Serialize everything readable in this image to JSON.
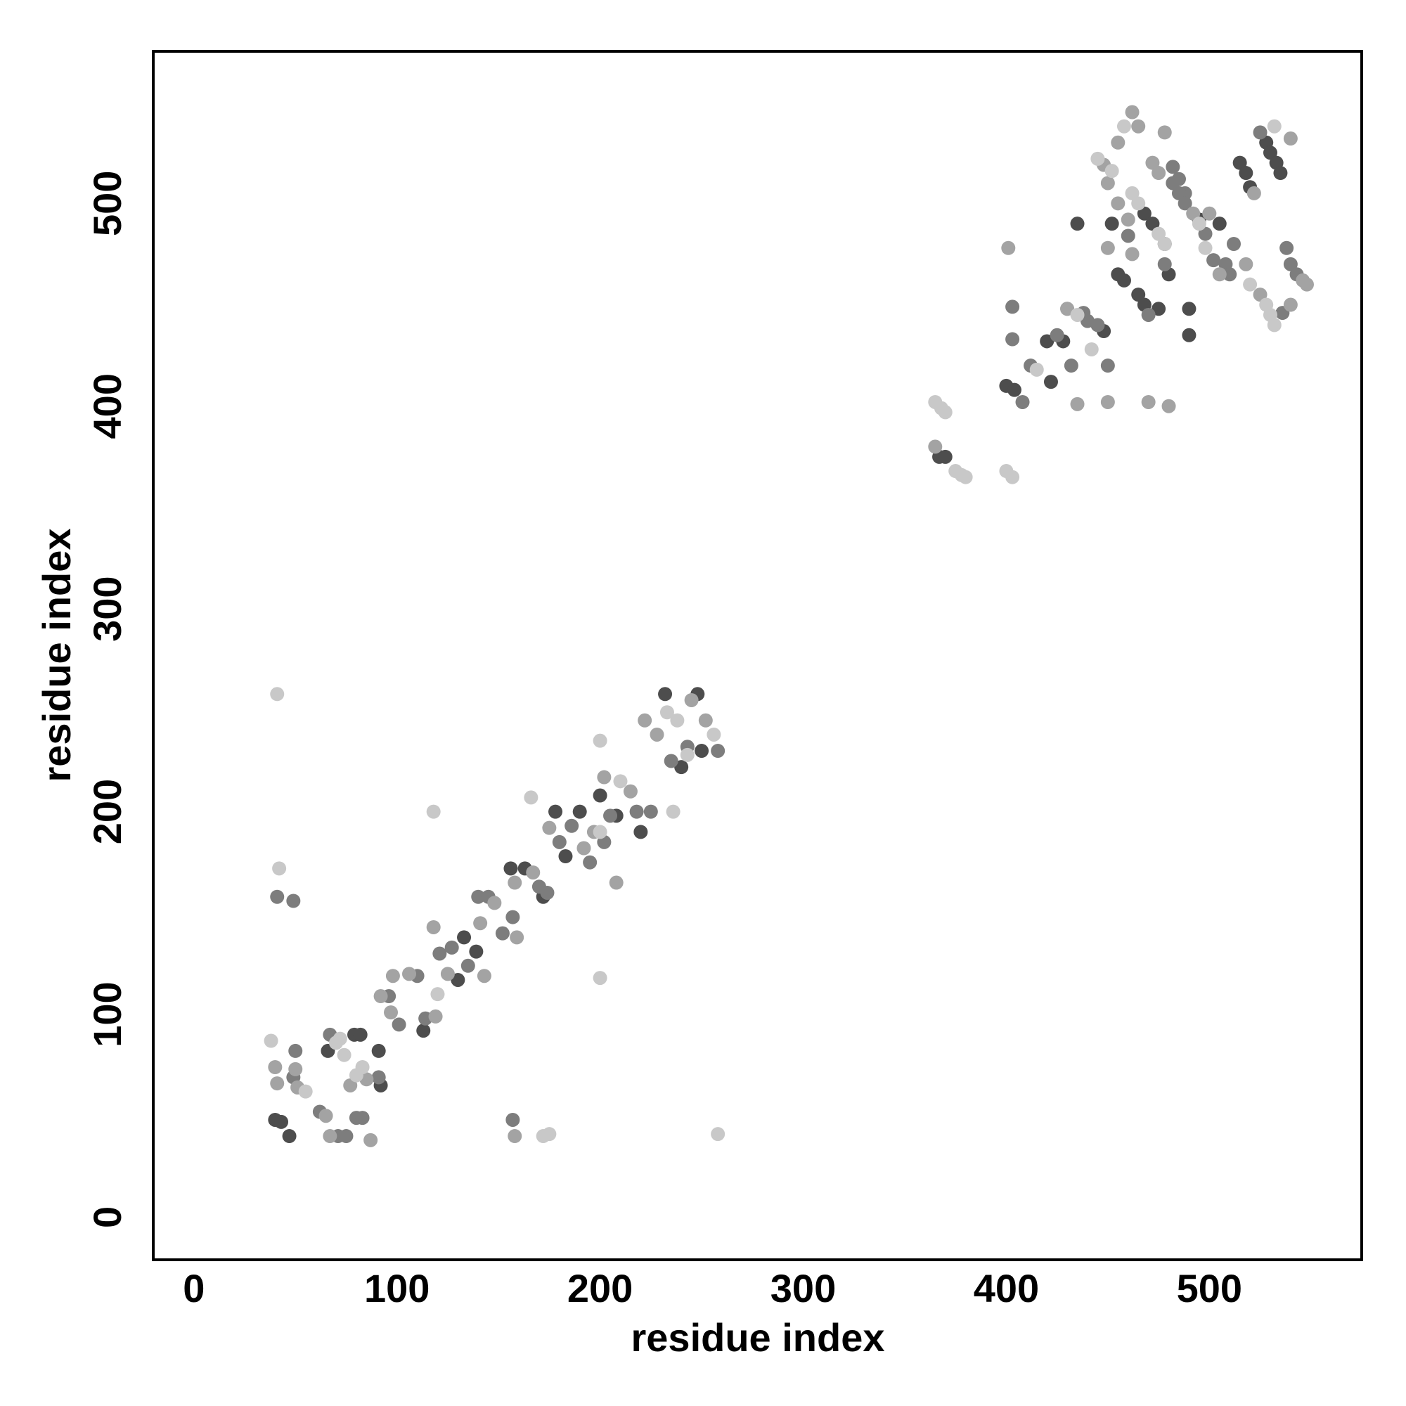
{
  "chart_data": {
    "type": "scatter",
    "xlabel": "residue index",
    "ylabel": "residue index",
    "xlim": [
      -20,
      575
    ],
    "ylim": [
      -21,
      575
    ],
    "xticks": [
      0,
      100,
      200,
      300,
      400,
      500
    ],
    "yticks": [
      0,
      100,
      200,
      300,
      400,
      500
    ],
    "series": [
      {
        "color": "#4d4d4d",
        "x": [
          40,
          43,
          47,
          66,
          79,
          82,
          91,
          92,
          113,
          130,
          133,
          139,
          156,
          163,
          172,
          178,
          183,
          190,
          200,
          208,
          220,
          232,
          240,
          248,
          250,
          367,
          370,
          400,
          404,
          420,
          422,
          428,
          435,
          448,
          452,
          455,
          458,
          465,
          468,
          475,
          480,
          490,
          495,
          505,
          515,
          518,
          520,
          528,
          530,
          533,
          535,
          468,
          472,
          478,
          490
        ],
        "y": [
          48,
          47,
          40,
          82,
          90,
          90,
          82,
          65,
          92,
          117,
          138,
          131,
          172,
          172,
          158,
          200,
          178,
          200,
          208,
          198,
          190,
          258,
          222,
          258,
          230,
          375,
          375,
          410,
          408,
          432,
          412,
          432,
          490,
          437,
          490,
          465,
          462,
          455,
          450,
          448,
          465,
          448,
          492,
          490,
          520,
          515,
          508,
          530,
          525,
          520,
          515,
          495,
          490,
          480,
          435
        ]
      },
      {
        "color": "#7d7d7d",
        "x": [
          41,
          49,
          50,
          49,
          62,
          67,
          71,
          75,
          80,
          83,
          91,
          96,
          101,
          110,
          114,
          121,
          127,
          135,
          140,
          145,
          152,
          157,
          170,
          174,
          180,
          186,
          195,
          202,
          205,
          218,
          225,
          235,
          243,
          258,
          157,
          403,
          403,
          408,
          412,
          425,
          432,
          438,
          440,
          445,
          450,
          460,
          470,
          478,
          482,
          485,
          488,
          498,
          508,
          510,
          512,
          525,
          538,
          540,
          543,
          536,
          482,
          485,
          488,
          502
        ],
        "y": [
          158,
          156,
          82,
          69,
          52,
          90,
          40,
          40,
          49,
          49,
          69,
          109,
          95,
          119,
          98,
          130,
          133,
          124,
          158,
          158,
          140,
          148,
          163,
          160,
          185,
          193,
          175,
          185,
          198,
          200,
          200,
          225,
          232,
          230,
          48,
          449,
          433,
          402,
          420,
          435,
          420,
          446,
          442,
          440,
          420,
          484,
          445,
          470,
          518,
          512,
          505,
          485,
          470,
          465,
          480,
          535,
          478,
          470,
          465,
          446,
          510,
          505,
          500,
          472
        ]
      },
      {
        "color": "#a3a3a3",
        "x": [
          40,
          41,
          50,
          51,
          65,
          67,
          77,
          85,
          87,
          92,
          97,
          98,
          106,
          118,
          119,
          125,
          141,
          143,
          148,
          158,
          159,
          167,
          175,
          192,
          197,
          202,
          208,
          215,
          222,
          228,
          245,
          252,
          158,
          365,
          401,
          430,
          435,
          450,
          450,
          462,
          470,
          478,
          480,
          448,
          455,
          462,
          465,
          472,
          475,
          500,
          518,
          522,
          525,
          540,
          540,
          546,
          548,
          450,
          455,
          460,
          430,
          492,
          505
        ],
        "y": [
          74,
          66,
          73,
          64,
          50,
          40,
          65,
          68,
          38,
          109,
          101,
          119,
          120,
          143,
          99,
          120,
          145,
          119,
          155,
          165,
          138,
          170,
          192,
          182,
          190,
          217,
          165,
          210,
          245,
          238,
          255,
          245,
          40,
          380,
          478,
          448,
          401,
          402,
          478,
          475,
          402,
          535,
          400,
          519,
          530,
          545,
          538,
          520,
          515,
          495,
          470,
          505,
          455,
          532,
          450,
          462,
          460,
          510,
          500,
          492,
          448,
          495,
          465
        ]
      },
      {
        "color": "#c8c8c8",
        "x": [
          38,
          41,
          42,
          55,
          70,
          72,
          74,
          80,
          83,
          120,
          166,
          200,
          200,
          210,
          236,
          238,
          256,
          233,
          243,
          200,
          118,
          172,
          175,
          258,
          365,
          368,
          370,
          375,
          378,
          380,
          400,
          403,
          415,
          442,
          445,
          452,
          458,
          498,
          520,
          528,
          530,
          532,
          532,
          462,
          465,
          475,
          478,
          495,
          435
        ],
        "y": [
          87,
          258,
          172,
          62,
          86,
          88,
          80,
          70,
          74,
          110,
          207,
          235,
          190,
          215,
          200,
          245,
          238,
          249,
          228,
          118,
          200,
          40,
          41,
          41,
          402,
          399,
          397,
          368,
          366,
          365,
          368,
          365,
          418,
          428,
          522,
          516,
          538,
          478,
          460,
          450,
          445,
          440,
          538,
          505,
          500,
          485,
          480,
          490,
          445
        ]
      }
    ]
  }
}
